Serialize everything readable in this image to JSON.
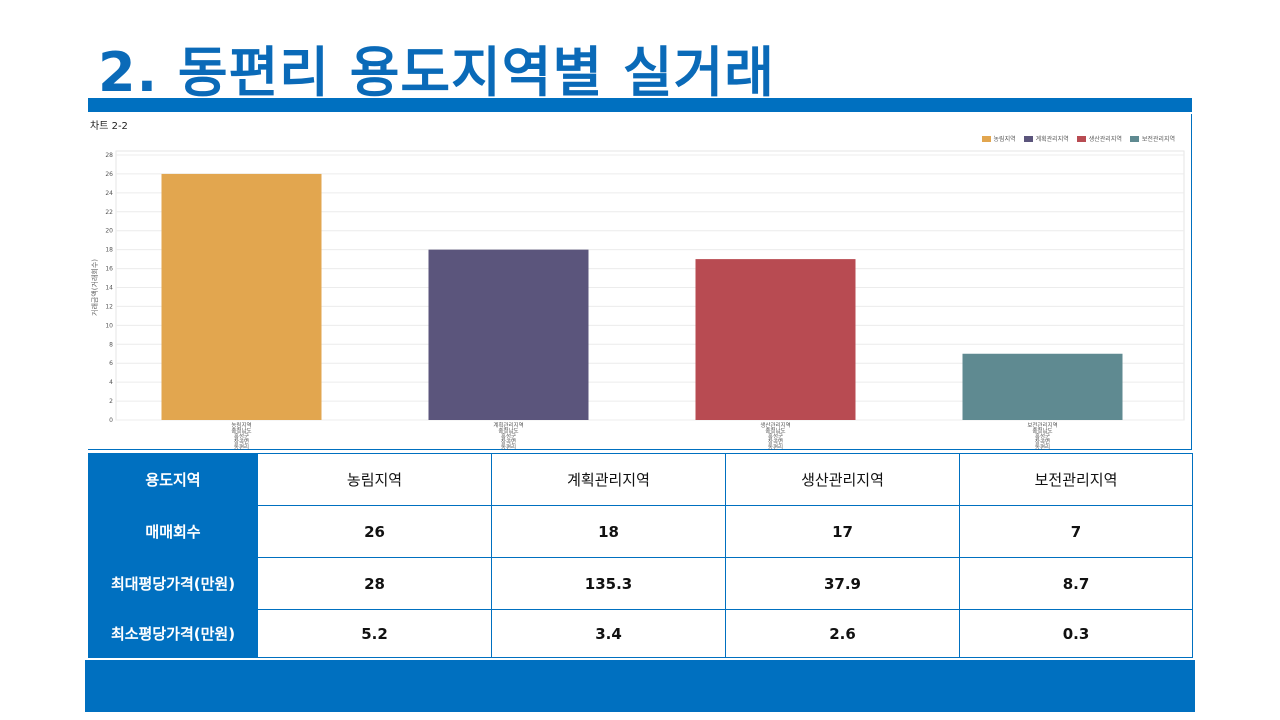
{
  "page": {
    "title": "2. 동편리 용도지역별 실거래"
  },
  "chart_label": "차트 2-2",
  "table": {
    "header_label": "용도지역",
    "columns": [
      "농림지역",
      "계획관리지역",
      "생산관리지역",
      "보전관리지역"
    ],
    "rows": [
      {
        "label": "매매회수",
        "values": [
          "26",
          "18",
          "17",
          "7"
        ]
      },
      {
        "label": "최대평당가격(만원)",
        "values": [
          "28",
          "135.3",
          "37.9",
          "8.7"
        ]
      },
      {
        "label": "최소평당가격(만원)",
        "values": [
          "5.2",
          "3.4",
          "2.6",
          "0.3"
        ]
      }
    ]
  },
  "chart_data": {
    "type": "bar",
    "categories": [
      "농림지역",
      "계획관리지역",
      "생산관리지역",
      "보전관리지역"
    ],
    "x_tick_sublabels": [
      "충청남도",
      "홍성군",
      "장곡면",
      "동편리"
    ],
    "values": [
      26,
      18,
      17,
      7
    ],
    "colors": [
      "#e2a64f",
      "#5b557c",
      "#b84b52",
      "#5f8a91"
    ],
    "series": [
      {
        "name": "농림지역",
        "color": "#e2a64f"
      },
      {
        "name": "계획관리지역",
        "color": "#5b557c"
      },
      {
        "name": "생산관리지역",
        "color": "#b84b52"
      },
      {
        "name": "보전관리지역",
        "color": "#5f8a91"
      }
    ],
    "ylabel": "거래금액(거래회수)",
    "yticks": [
      0,
      2,
      4,
      6,
      8,
      10,
      12,
      14,
      16,
      18,
      20,
      22,
      24,
      26,
      28
    ],
    "ylim": [
      0,
      28
    ],
    "grid": true,
    "legend_position": "top-right"
  }
}
